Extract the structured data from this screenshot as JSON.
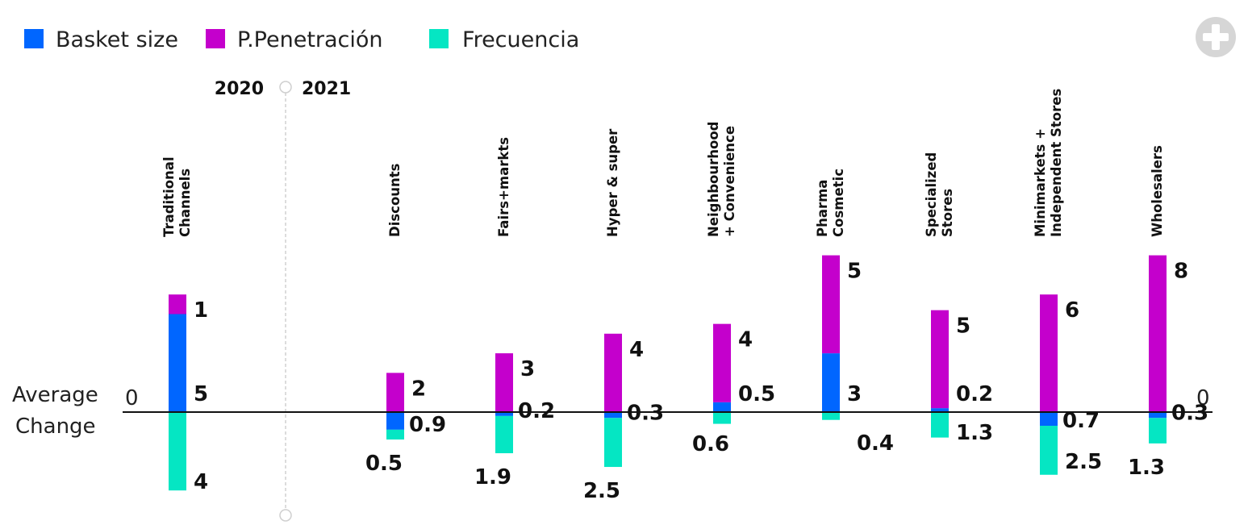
{
  "chart_data": {
    "type": "bar",
    "stacked": true,
    "legend": {
      "placement": "top-left"
    },
    "series": [
      {
        "key": "basket",
        "name": "Basket size",
        "color": "#0066ff"
      },
      {
        "key": "penetration",
        "name": "P.Penetración",
        "color": "#c400cc"
      },
      {
        "key": "frequency",
        "name": "Frecuencia",
        "color": "#05e6c3"
      }
    ],
    "years": {
      "left": "2020",
      "right": "2021"
    },
    "y_axis_label": [
      "Average",
      "Change"
    ],
    "zero_left": "0",
    "zero_right": "0",
    "ylim": [
      -4.1,
      8.3
    ],
    "categories": [
      {
        "name": [
          "Traditional",
          "Channels"
        ],
        "basket": 5,
        "penetration": 1,
        "frequency": -4,
        "labels": {
          "basket": "5",
          "penetration": "1",
          "frequency": "4"
        }
      },
      {
        "name": [
          "Discounts"
        ],
        "basket": -0.9,
        "penetration": 2,
        "frequency": -0.5,
        "labels": {
          "basket": "0.9",
          "penetration": "2",
          "frequency": "0.5"
        }
      },
      {
        "name": [
          "Fairs+markts"
        ],
        "basket": -0.2,
        "penetration": 3,
        "frequency": -1.9,
        "labels": {
          "basket": "0.2",
          "penetration": "3",
          "frequency": "1.9"
        }
      },
      {
        "name": [
          "Hyper & super"
        ],
        "basket": -0.3,
        "penetration": 4,
        "frequency": -2.5,
        "labels": {
          "basket": "0.3",
          "penetration": "4",
          "frequency": "2.5"
        }
      },
      {
        "name": [
          "Neighbourhood",
          "+ Convenience"
        ],
        "basket": 0.5,
        "penetration": 4,
        "frequency": -0.6,
        "labels": {
          "basket": "0.5",
          "penetration": "4",
          "frequency": "0.6"
        }
      },
      {
        "name": [
          "Pharma",
          "Cosmetic"
        ],
        "basket": 3,
        "penetration": 5,
        "frequency": -0.4,
        "labels": {
          "basket": "3",
          "penetration": "5",
          "frequency": "0.4"
        }
      },
      {
        "name": [
          "Specialized",
          "Stores"
        ],
        "basket": 0.2,
        "penetration": 5,
        "frequency": -1.3,
        "labels": {
          "basket": "0.2",
          "penetration": "5",
          "frequency": "1.3"
        }
      },
      {
        "name": [
          "Minimarkets +",
          "Independent Stores"
        ],
        "basket": -0.7,
        "penetration": 6,
        "frequency": -2.5,
        "labels": {
          "basket": "0.7",
          "penetration": "6",
          "frequency": "2.5"
        }
      },
      {
        "name": [
          "Wholesalers"
        ],
        "basket": -0.3,
        "penetration": 8,
        "frequency": -1.3,
        "labels": {
          "basket": "0.3",
          "penetration": "8",
          "frequency": "1.3"
        }
      }
    ]
  },
  "controls": {
    "expand_icon": "plus-circle-icon",
    "expand_color": "#d6d6d6"
  },
  "colors": {
    "axis": "#111111",
    "divider": "#d0d0d0"
  }
}
